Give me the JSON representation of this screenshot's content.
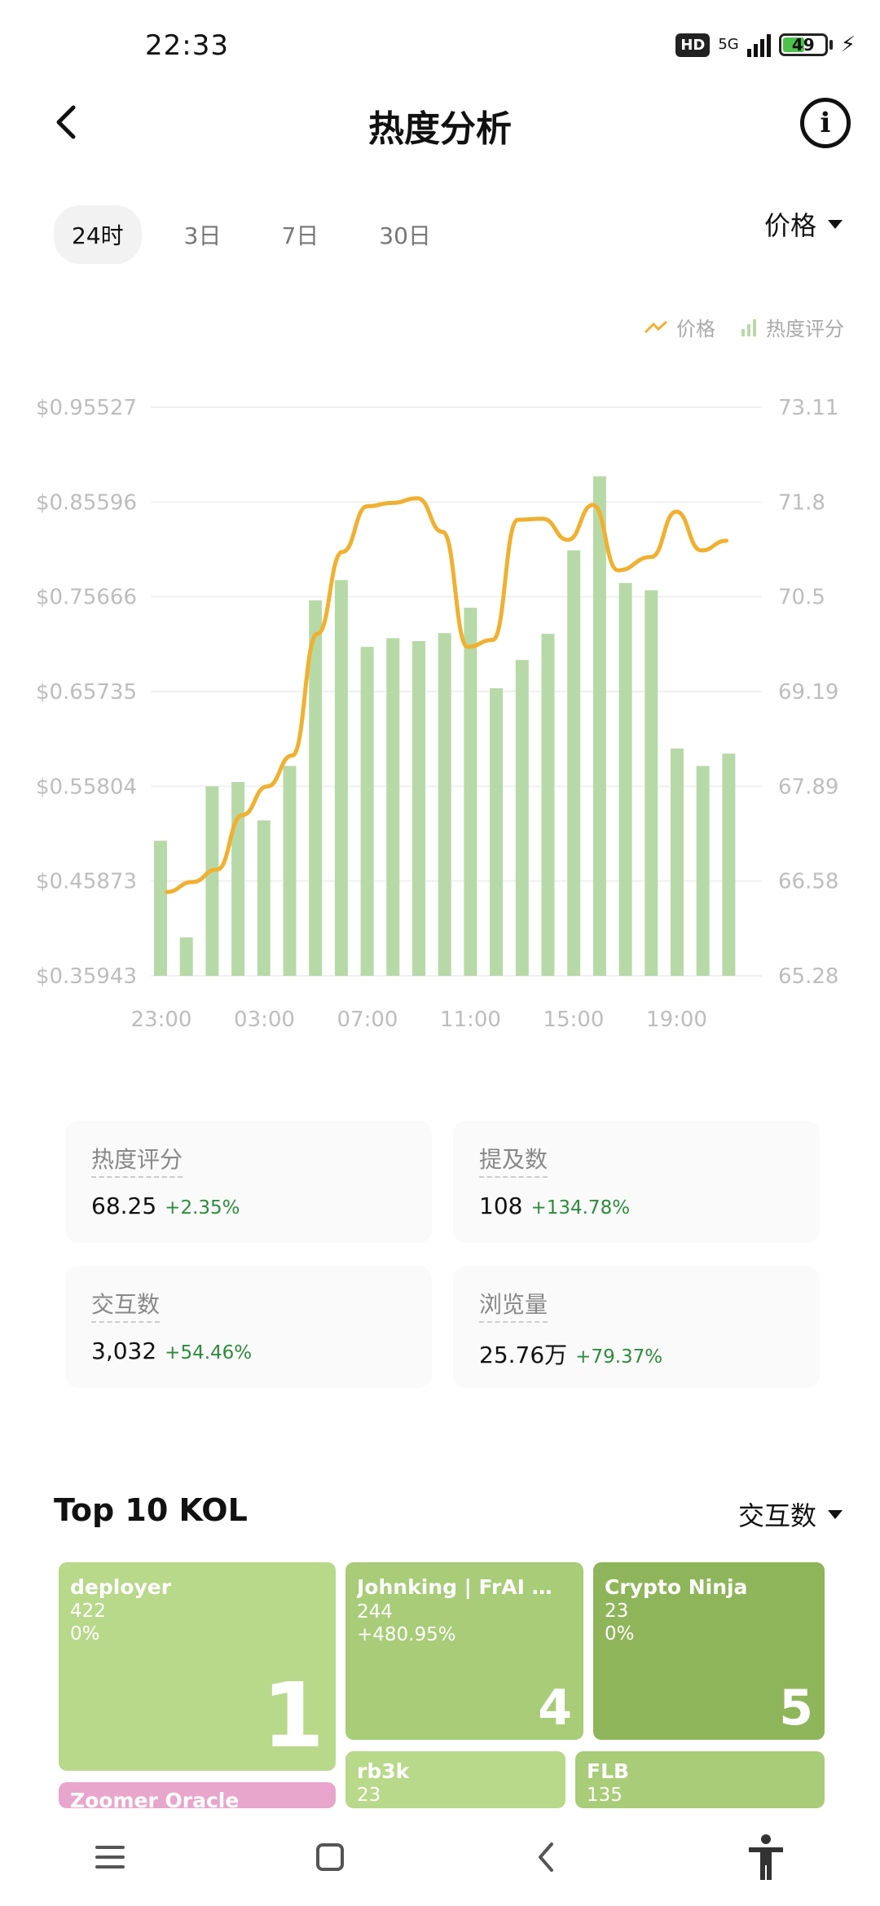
{
  "status": {
    "time": "22:33",
    "hd": "HD",
    "network": "5G",
    "battery": "49"
  },
  "header": {
    "title": "热度分析",
    "back_icon": "chevron-left-icon",
    "info_icon": "info-icon"
  },
  "range_tabs": [
    {
      "label": "24时",
      "active": true
    },
    {
      "label": "3日",
      "active": false
    },
    {
      "label": "7日",
      "active": false
    },
    {
      "label": "30日",
      "active": false
    }
  ],
  "metric_select": {
    "label": "价格"
  },
  "legend": {
    "price": "价格",
    "heat": "热度评分"
  },
  "colors": {
    "price_line": "#f0b030",
    "heat_bar": "#b7d9a8",
    "positive": "#2e8b3d",
    "kol_bg": "#b8d88a"
  },
  "chart_data": {
    "type": "bar+line",
    "x_labels": [
      "23:00",
      "03:00",
      "07:00",
      "11:00",
      "15:00",
      "19:00"
    ],
    "y_left_ticks": [
      "$0.95527",
      "$0.85596",
      "$0.75666",
      "$0.65735",
      "$0.55804",
      "$0.45873",
      "$0.35943"
    ],
    "y_right_ticks": [
      "73.11",
      "71.8",
      "70.5",
      "69.19",
      "67.89",
      "66.58",
      "65.28"
    ],
    "y_left_range": [
      0.35943,
      0.95527
    ],
    "y_right_range": [
      65.28,
      73.11
    ],
    "heat_bars": [
      67.14,
      65.81,
      67.89,
      67.95,
      67.42,
      68.17,
      70.45,
      70.73,
      69.81,
      69.93,
      69.89,
      70.0,
      70.35,
      69.24,
      69.63,
      69.99,
      71.14,
      72.16,
      70.69,
      70.59,
      68.41,
      68.17,
      68.34
    ],
    "price_line": [
      0.4473,
      0.4577,
      0.4708,
      0.5278,
      0.5579,
      0.5903,
      0.7178,
      0.8037,
      0.8515,
      0.8551,
      0.8599,
      0.8247,
      0.7042,
      0.7115,
      0.8374,
      0.8384,
      0.8163,
      0.8529,
      0.7844,
      0.7984,
      0.8459,
      0.8052,
      0.8154
    ]
  },
  "stats": [
    {
      "label": "热度评分",
      "value": "68.25",
      "change": "+2.35%"
    },
    {
      "label": "提及数",
      "value": "108",
      "change": "+134.78%"
    },
    {
      "label": "交互数",
      "value": "3,032",
      "change": "+54.46%"
    },
    {
      "label": "浏览量",
      "value": "25.76万",
      "change": "+79.37%"
    }
  ],
  "kol": {
    "title": "Top 10 KOL",
    "sort_label": "交互数",
    "cards": [
      {
        "name": "deployer",
        "count": "422",
        "pct": "0%",
        "rank": "1"
      },
      {
        "name": "Johnking | FrAI 🦜 M…",
        "count": "244",
        "pct": "+480.95%",
        "rank": "4"
      },
      {
        "name": "Crypto Ninja",
        "count": "23",
        "pct": "0%",
        "rank": "5"
      },
      {
        "name": "Zoomer Oracle",
        "count": "",
        "pct": "",
        "rank": ""
      },
      {
        "name": "rb3k",
        "count": "23",
        "pct": "",
        "rank": ""
      },
      {
        "name": "FLB",
        "count": "135",
        "pct": "",
        "rank": ""
      }
    ]
  },
  "nav": {
    "menu_icon": "menu-icon",
    "home_icon": "home-icon",
    "back_icon": "back-icon",
    "accessibility_icon": "accessibility-icon"
  }
}
